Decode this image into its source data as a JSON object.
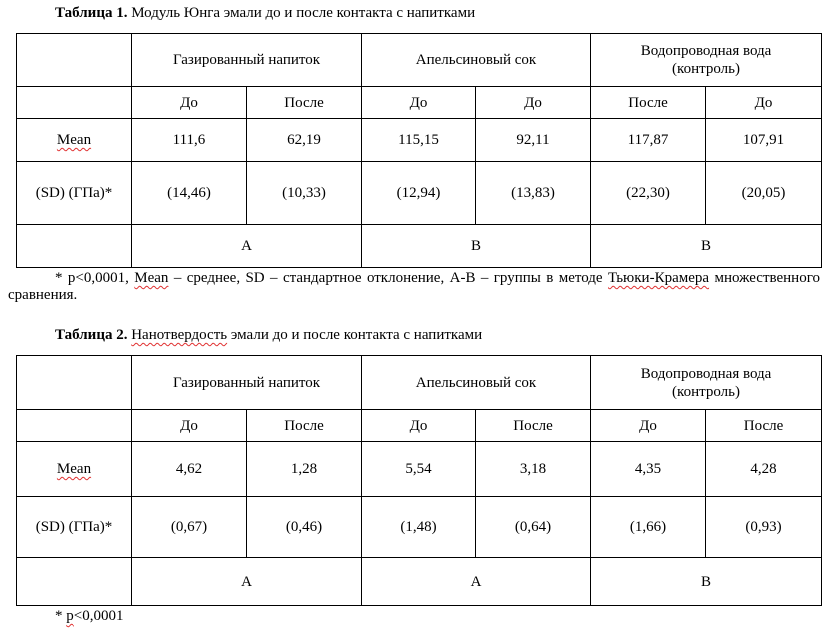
{
  "table1": {
    "caption_bold": "Таблица 1.",
    "caption": " Модуль Юнга эмали до и после контакта с напитками",
    "groups": [
      "Газированный напиток",
      "Апельсиновый сок",
      "Водопроводная вода",
      "(контроль)"
    ],
    "subheaders": [
      "До",
      "После",
      "До",
      "До",
      "После",
      "До"
    ],
    "row_mean_label": "Mean",
    "mean": [
      "111,6",
      "62,19",
      "115,15",
      "92,11",
      "117,87",
      "107,91"
    ],
    "row_sd_label": "(SD) (ГПа)*",
    "sd": [
      "(14,46)",
      "(10,33)",
      "(12,94)",
      "(13,83)",
      "(22,30)",
      "(20,05)"
    ],
    "letters": [
      "A",
      "B",
      "B"
    ],
    "footnote_a": "* p<0,0001, ",
    "footnote_mean": "Mean",
    "footnote_b": " – среднее, SD – стандартное отклонение, A-B – группы в методе ",
    "footnote_tk": "Тьюки-Крамера",
    "footnote_c": " множественного сравнения."
  },
  "table2": {
    "caption_bold": "Таблица 2.",
    "caption_sq": "Нанотвердость",
    "caption": " эмали до и после контакта с напитками",
    "groups": [
      "Газированный напиток",
      "Апельсиновый сок",
      "Водопроводная вода",
      "(контроль)"
    ],
    "subheaders": [
      "До",
      "После",
      "До",
      "После",
      "До",
      "После"
    ],
    "row_mean_label": "Mean",
    "mean": [
      "4,62",
      "1,28",
      "5,54",
      "3,18",
      "4,35",
      "4,28"
    ],
    "row_sd_label": "(SD) (ГПа)*",
    "sd": [
      "(0,67)",
      "(0,46)",
      "(1,48)",
      "(0,64)",
      "(1,66)",
      "(0,93)"
    ],
    "letters": [
      "A",
      "A",
      "B"
    ],
    "footnote_a": "* ",
    "footnote_p": "p",
    "footnote_b": "<0,0001"
  }
}
